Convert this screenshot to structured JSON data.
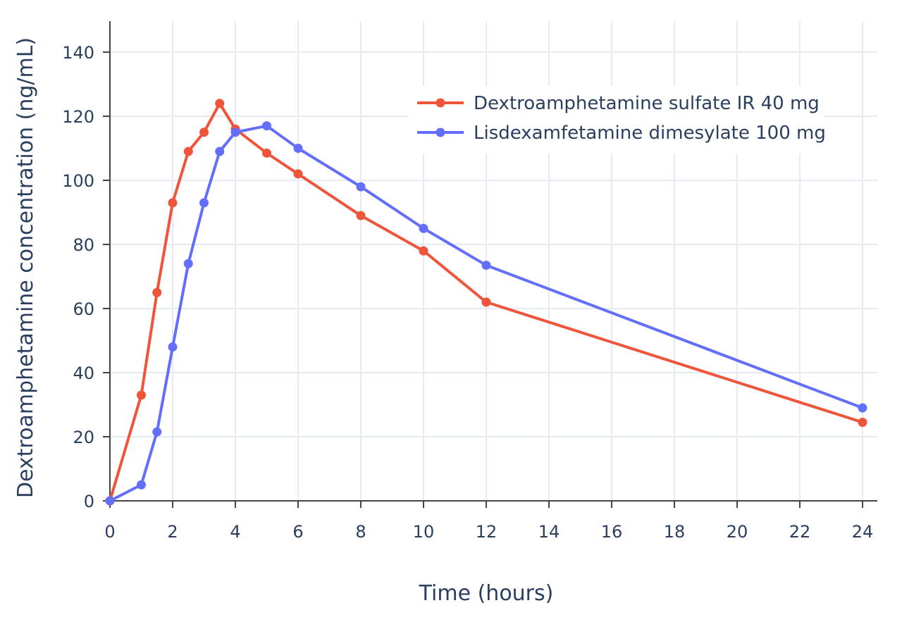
{
  "chart_data": {
    "type": "line",
    "title": "",
    "xlabel": "Time (hours)",
    "ylabel": "Dextroamphetamine concentration (ng/mL)",
    "xlim": [
      0,
      24.5
    ],
    "ylim": [
      -3,
      150
    ],
    "xticks": [
      0,
      2,
      4,
      6,
      8,
      10,
      12,
      14,
      16,
      18,
      20,
      22,
      24
    ],
    "yticks": [
      0,
      20,
      40,
      60,
      80,
      100,
      120,
      140
    ],
    "grid": true,
    "legend_position": "top-right",
    "series": [
      {
        "name": "Dextroamphetamine sulfate IR 40 mg",
        "color": "#EF553B",
        "x": [
          0,
          1,
          1.5,
          2,
          2.5,
          3,
          3.5,
          4,
          5,
          6,
          8,
          10,
          12,
          24
        ],
        "y": [
          0,
          33,
          65,
          93,
          109,
          115,
          124,
          116,
          108.5,
          102,
          89,
          78,
          62,
          24.5
        ]
      },
      {
        "name": "Lisdexamfetamine dimesylate 100 mg",
        "color": "#636EFA",
        "x": [
          0,
          1,
          1.5,
          2,
          2.5,
          3,
          3.5,
          4,
          5,
          6,
          8,
          10,
          12,
          24
        ],
        "y": [
          0,
          5,
          21.5,
          48,
          74,
          93,
          109,
          115,
          117,
          110,
          98,
          85,
          73.5,
          29
        ]
      }
    ]
  }
}
